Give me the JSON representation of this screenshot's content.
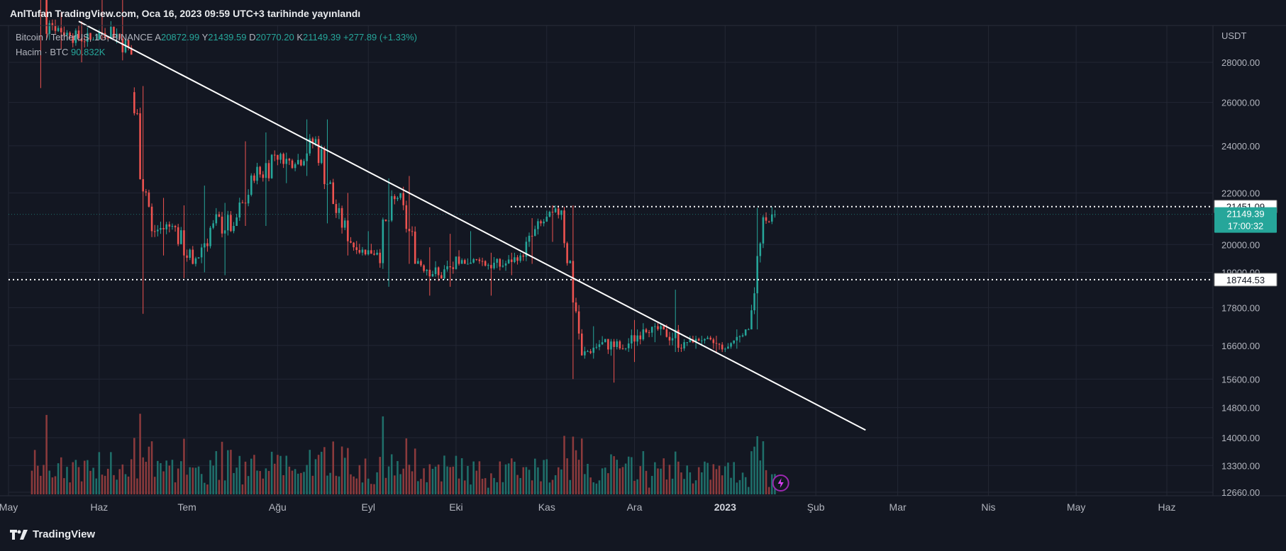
{
  "header": {
    "published": "AnlTufan TradingView.com, Oca 16, 2023 09:59 UTC+3 tarihinde yayınlandı"
  },
  "legend": {
    "symbol": "Bitcoin / TetherUS, 1G, BINANCE",
    "open_label": "A",
    "open": "20872.99",
    "high_label": "Y",
    "high": "21439.59",
    "low_label": "D",
    "low": "20770.20",
    "close_label": "K",
    "close": "21149.39",
    "change": "+277.89 (+1.33%)",
    "volume_label": "Hacim · BTC",
    "volume": "90.832K"
  },
  "footer": {
    "brand": "TradingView"
  },
  "colors": {
    "background": "#131722",
    "up": "#26a69a",
    "down": "#ef5350",
    "volume_up": "#1f6f6a",
    "volume_down": "#8b3a3c",
    "grid": "#232734",
    "trendline": "#ffffff",
    "axis_text": "#b2b5be"
  },
  "chart_data": {
    "type": "candlestick",
    "symbol": "Bitcoin / TetherUS",
    "interval": "1G",
    "exchange": "BINANCE",
    "y_axis_unit": "USDT",
    "y_axis_ticks": [
      "28000.00",
      "26000.00",
      "24000.00",
      "22000.00",
      "21451.09",
      "21149.39",
      "20000.00",
      "19000.00",
      "18744.53",
      "17800.00",
      "16600.00",
      "15600.00",
      "14800.00",
      "14000.00",
      "13300.00",
      "12660.00"
    ],
    "y_axis_scale": "log",
    "x_axis_labels": [
      "May",
      "Haz",
      "Tem",
      "Ağu",
      "Eyl",
      "Eki",
      "Kas",
      "Ara",
      "2023",
      "Şub",
      "Mar",
      "Nis",
      "May",
      "Haz"
    ],
    "price_labels": [
      {
        "value": "21451.09",
        "style": "horizontal dotted line"
      },
      {
        "value": "21149.39",
        "countdown": "17:00:32",
        "style": "last price"
      },
      {
        "value": "18744.53",
        "style": "horizontal dotted line"
      }
    ],
    "trendline": {
      "from": {
        "date": "2022-05-25",
        "price": 30200
      },
      "to": {
        "date": "2023-02-18",
        "price": 14200
      }
    },
    "ohlc_weekly_approx": [
      {
        "date": "2022-05-09",
        "o": 34000,
        "h": 36800,
        "l": 26700,
        "c": 30100
      },
      {
        "date": "2022-05-16",
        "o": 30100,
        "h": 30700,
        "l": 28700,
        "c": 29400
      },
      {
        "date": "2022-05-23",
        "o": 29400,
        "h": 30200,
        "l": 28000,
        "c": 29200
      },
      {
        "date": "2022-05-30",
        "o": 29200,
        "h": 32200,
        "l": 29200,
        "c": 29900
      },
      {
        "date": "2022-06-06",
        "o": 29900,
        "h": 31500,
        "l": 28100,
        "c": 28400
      },
      {
        "date": "2022-06-13",
        "o": 26500,
        "h": 26800,
        "l": 17600,
        "c": 20500
      },
      {
        "date": "2022-06-20",
        "o": 20500,
        "h": 21800,
        "l": 19600,
        "c": 20700
      },
      {
        "date": "2022-06-27",
        "o": 20700,
        "h": 21500,
        "l": 18800,
        "c": 19300
      },
      {
        "date": "2022-07-04",
        "o": 19300,
        "h": 22300,
        "l": 19000,
        "c": 20800
      },
      {
        "date": "2022-07-11",
        "o": 20800,
        "h": 21600,
        "l": 18900,
        "c": 20700
      },
      {
        "date": "2022-07-18",
        "o": 20700,
        "h": 24200,
        "l": 20700,
        "c": 22500
      },
      {
        "date": "2022-07-25",
        "o": 22500,
        "h": 24600,
        "l": 20700,
        "c": 23600
      },
      {
        "date": "2022-08-01",
        "o": 23600,
        "h": 23700,
        "l": 22400,
        "c": 23200
      },
      {
        "date": "2022-08-08",
        "o": 23200,
        "h": 25200,
        "l": 22700,
        "c": 24300
      },
      {
        "date": "2022-08-15",
        "o": 24300,
        "h": 25200,
        "l": 20800,
        "c": 21200
      },
      {
        "date": "2022-08-22",
        "o": 21200,
        "h": 22000,
        "l": 19600,
        "c": 19800
      },
      {
        "date": "2022-08-29",
        "o": 19800,
        "h": 20500,
        "l": 19600,
        "c": 19700
      },
      {
        "date": "2022-09-05",
        "o": 19700,
        "h": 22600,
        "l": 18500,
        "c": 21800
      },
      {
        "date": "2022-09-12",
        "o": 21800,
        "h": 22700,
        "l": 19300,
        "c": 19400
      },
      {
        "date": "2022-09-19",
        "o": 19400,
        "h": 19900,
        "l": 18200,
        "c": 18900
      },
      {
        "date": "2022-09-26",
        "o": 18900,
        "h": 20400,
        "l": 18500,
        "c": 19300
      },
      {
        "date": "2022-10-03",
        "o": 19300,
        "h": 20500,
        "l": 19300,
        "c": 19400
      },
      {
        "date": "2022-10-10",
        "o": 19400,
        "h": 19700,
        "l": 18200,
        "c": 19200
      },
      {
        "date": "2022-10-17",
        "o": 19200,
        "h": 19700,
        "l": 18900,
        "c": 19600
      },
      {
        "date": "2022-10-24",
        "o": 19600,
        "h": 21000,
        "l": 19300,
        "c": 20800
      },
      {
        "date": "2022-10-31",
        "o": 20800,
        "h": 21500,
        "l": 20100,
        "c": 21300
      },
      {
        "date": "2022-11-07",
        "o": 21300,
        "h": 21500,
        "l": 15600,
        "c": 16300
      },
      {
        "date": "2022-11-14",
        "o": 16300,
        "h": 17200,
        "l": 16200,
        "c": 16700
      },
      {
        "date": "2022-11-21",
        "o": 16700,
        "h": 16800,
        "l": 15500,
        "c": 16500
      },
      {
        "date": "2022-11-28",
        "o": 16500,
        "h": 17400,
        "l": 16100,
        "c": 17100
      },
      {
        "date": "2022-12-05",
        "o": 17100,
        "h": 17300,
        "l": 16700,
        "c": 17100
      },
      {
        "date": "2022-12-12",
        "o": 17100,
        "h": 18400,
        "l": 16400,
        "c": 16700
      },
      {
        "date": "2022-12-19",
        "o": 16700,
        "h": 16900,
        "l": 16500,
        "c": 16800
      },
      {
        "date": "2022-12-26",
        "o": 16800,
        "h": 16900,
        "l": 16400,
        "c": 16500
      },
      {
        "date": "2023-01-02",
        "o": 16500,
        "h": 17100,
        "l": 16500,
        "c": 17100
      },
      {
        "date": "2023-01-09",
        "o": 17100,
        "h": 21400,
        "l": 17100,
        "c": 20900
      },
      {
        "date": "2023-01-16",
        "o": 20873,
        "h": 21440,
        "l": 20770,
        "c": 21149
      }
    ]
  }
}
